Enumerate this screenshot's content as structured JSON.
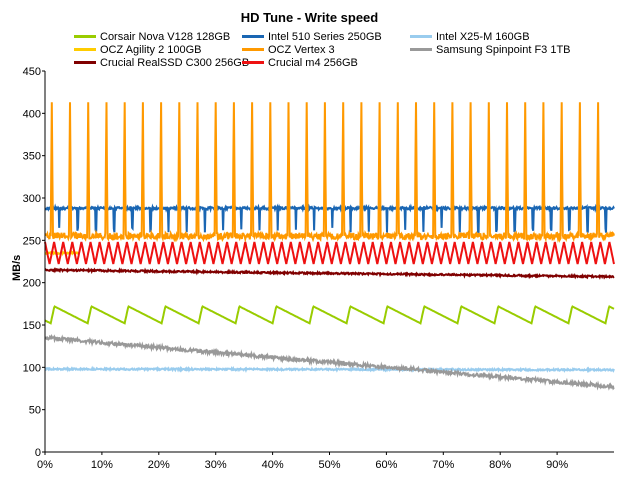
{
  "chart_data": {
    "type": "line",
    "title": "HD Tune - Write speed",
    "xlabel": "",
    "ylabel": "MB/s",
    "ylim": [
      0,
      450
    ],
    "yticks": [
      "0",
      "50",
      "100",
      "150",
      "200",
      "250",
      "300",
      "350",
      "400",
      "450"
    ],
    "xlim": [
      0,
      100
    ],
    "xticks": [
      "0%",
      "10%",
      "20%",
      "30%",
      "40%",
      "50%",
      "60%",
      "70%",
      "80%",
      "90%"
    ],
    "grid": false,
    "legend_position": "top",
    "series": [
      {
        "name": "Corsair Nova V128 128GB",
        "color": "#99cc00",
        "pattern": "sawtooth",
        "high": 172,
        "low": 152,
        "period": 6.5,
        "shape": "sawtooth"
      },
      {
        "name": "Intel 510 Series 250GB",
        "color": "#1a66b3",
        "pattern": "flat-with-dips",
        "base": 288,
        "dip": 262,
        "period": 3.2
      },
      {
        "name": "Intel X25-M 160GB",
        "color": "#99ccee",
        "pattern": "flat",
        "start": 98,
        "end": 97
      },
      {
        "name": "OCZ Agility 2 100GB",
        "color": "#ffcc00",
        "pattern": "flat",
        "start": 235,
        "end": 235,
        "range": [
          0,
          6
        ]
      },
      {
        "name": "OCZ Vertex 3",
        "color": "#ff9900",
        "pattern": "spikes",
        "base": 255,
        "peak": 420,
        "period": 3.2
      },
      {
        "name": "Samsung Spinpoint F3 1TB",
        "color": "#999999",
        "pattern": "decline",
        "start": 135,
        "end": 77
      },
      {
        "name": "Crucial RealSSD C300 256GB",
        "color": "#800000",
        "pattern": "flat",
        "start": 215,
        "end": 207
      },
      {
        "name": "Crucial m4 256GB",
        "color": "#ee1111",
        "pattern": "zigzag",
        "high": 248,
        "low": 222,
        "period": 1.6
      }
    ]
  }
}
